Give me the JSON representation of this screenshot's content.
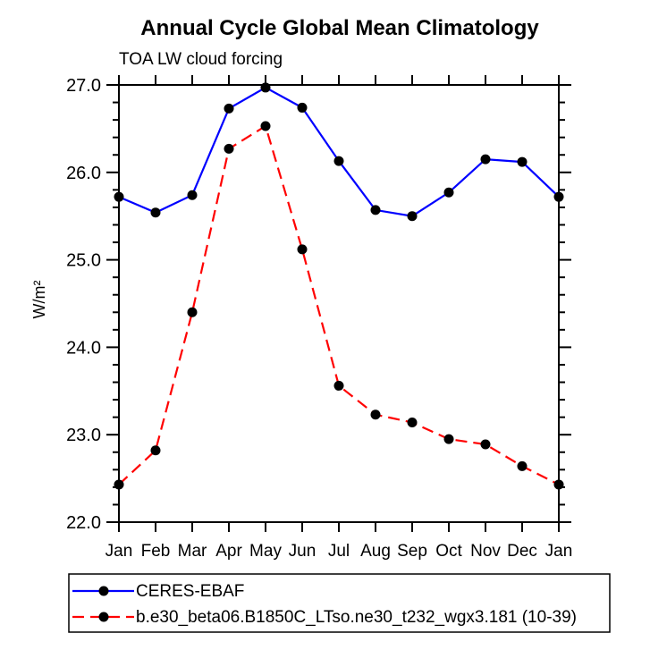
{
  "chart_data": {
    "type": "line",
    "title": "Annual Cycle Global Mean Climatology",
    "subtitle": "TOA LW cloud forcing",
    "ylabel": "W/m²",
    "categories": [
      "Jan",
      "Feb",
      "Mar",
      "Apr",
      "May",
      "Jun",
      "Jul",
      "Aug",
      "Sep",
      "Oct",
      "Nov",
      "Dec",
      "Jan"
    ],
    "ylim": [
      22.0,
      27.0
    ],
    "y_tick_labels": [
      "22.0",
      "23.0",
      "24.0",
      "25.0",
      "26.0",
      "27.0"
    ],
    "y_minor_step": 0.2,
    "grid": false,
    "legend_position": "bottom",
    "axis_color": "#000000",
    "series": [
      {
        "name": "CERES-EBAF",
        "color": "#0000ff",
        "style": "solid",
        "marker": "circle",
        "marker_color": "#000000",
        "values": [
          25.72,
          25.54,
          25.74,
          26.73,
          26.97,
          26.74,
          26.13,
          25.57,
          25.5,
          25.77,
          26.15,
          26.12,
          25.72
        ]
      },
      {
        "name": "b.e30_beta06.B1850C_LTso.ne30_t232_wgx3.181 (10-39)",
        "color": "#ff0000",
        "style": "dashed",
        "marker": "circle",
        "marker_color": "#000000",
        "values": [
          22.43,
          22.82,
          24.4,
          26.27,
          26.53,
          25.12,
          23.56,
          23.23,
          23.14,
          22.95,
          22.89,
          22.64,
          22.43
        ]
      }
    ]
  }
}
